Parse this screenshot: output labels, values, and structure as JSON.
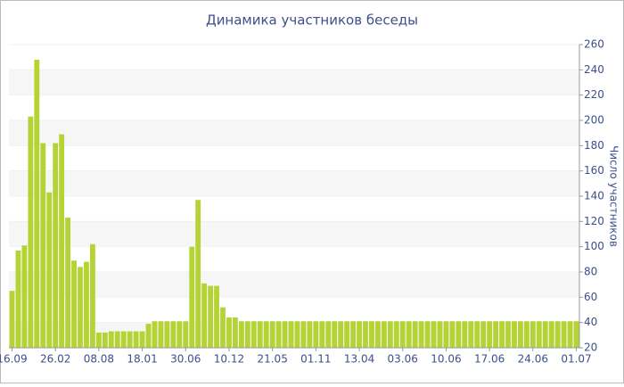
{
  "chart_data": {
    "type": "bar",
    "title": "Динамика участников беседы",
    "y_axis_label": "Число участников",
    "categories": [
      "16.09",
      null,
      null,
      null,
      null,
      null,
      null,
      "26.02",
      null,
      null,
      null,
      null,
      null,
      null,
      "08.08",
      null,
      null,
      null,
      null,
      null,
      null,
      "18.01",
      null,
      null,
      null,
      null,
      null,
      null,
      "30.06",
      null,
      null,
      null,
      null,
      null,
      null,
      "10.12",
      null,
      null,
      null,
      null,
      null,
      null,
      "21.05",
      null,
      null,
      null,
      null,
      null,
      null,
      "01.11",
      null,
      null,
      null,
      null,
      null,
      null,
      "13.04",
      null,
      null,
      null,
      null,
      null,
      null,
      "03.06",
      null,
      null,
      null,
      null,
      null,
      null,
      "10.06",
      null,
      null,
      null,
      null,
      null,
      null,
      "17.06",
      null,
      null,
      null,
      null,
      null,
      null,
      "24.06",
      null,
      null,
      null,
      null,
      null,
      null,
      "01.07"
    ],
    "values": [
      65,
      97,
      101,
      203,
      248,
      182,
      143,
      182,
      189,
      123,
      89,
      84,
      88,
      102,
      32,
      32,
      33,
      33,
      33,
      33,
      33,
      33,
      39,
      41,
      41,
      41,
      41,
      41,
      41,
      100,
      137,
      71,
      69,
      69,
      52,
      44,
      44,
      41,
      41,
      41,
      41,
      41,
      41,
      41,
      41,
      41,
      41,
      41,
      41,
      41,
      41,
      41,
      41,
      41,
      41,
      41,
      41,
      41,
      41,
      41,
      41,
      41,
      41,
      41,
      41,
      41,
      41,
      41,
      41,
      41,
      41,
      41,
      41,
      41,
      41,
      41,
      41,
      41,
      41,
      41,
      41,
      41,
      41,
      41,
      41,
      41,
      41,
      41,
      41,
      41,
      41,
      41
    ],
    "color": "#b5d334",
    "ylim": [
      20,
      260
    ],
    "yticks": [
      20,
      40,
      60,
      80,
      100,
      120,
      140,
      160,
      180,
      200,
      220,
      240,
      260
    ],
    "grid": true
  }
}
